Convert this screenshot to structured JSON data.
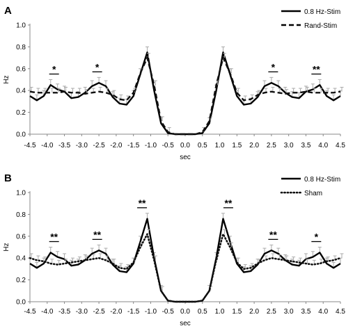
{
  "chart_data": [
    {
      "type": "line",
      "panel_label": "A",
      "xlabel": "sec",
      "ylabel": "Hz",
      "xlim": [
        -4.5,
        4.5
      ],
      "ylim": [
        0,
        1.0
      ],
      "x_ticks": [
        "-4.5",
        "-4.0",
        "-3.5",
        "-3.0",
        "-2.5",
        "-2.0",
        "-1.5",
        "-1.0",
        "-0.5",
        "0.0",
        "0.5",
        "1.0",
        "1.5",
        "2.0",
        "2.5",
        "3.0",
        "3.5",
        "4.0",
        "4.5"
      ],
      "y_ticks": [
        "0.0",
        "0.2",
        "0.4",
        "0.6",
        "0.8",
        "1.0"
      ],
      "x": [
        -4.5,
        -4.3,
        -4.1,
        -3.9,
        -3.7,
        -3.5,
        -3.3,
        -3.1,
        -2.9,
        -2.7,
        -2.5,
        -2.3,
        -2.1,
        -1.9,
        -1.7,
        -1.5,
        -1.3,
        -1.1,
        -0.9,
        -0.7,
        -0.5,
        -0.3,
        -0.1,
        0.1,
        0.3,
        0.5,
        0.7,
        0.9,
        1.1,
        1.3,
        1.5,
        1.7,
        1.9,
        2.1,
        2.3,
        2.5,
        2.7,
        2.9,
        3.1,
        3.3,
        3.5,
        3.7,
        3.9,
        4.1,
        4.3,
        4.5
      ],
      "series": [
        {
          "name": "0.8 Hz-Stim",
          "style": "solid",
          "values": [
            0.35,
            0.31,
            0.35,
            0.45,
            0.41,
            0.39,
            0.33,
            0.34,
            0.38,
            0.44,
            0.47,
            0.44,
            0.34,
            0.28,
            0.27,
            0.35,
            0.55,
            0.75,
            0.4,
            0.1,
            0.01,
            0.0,
            0.0,
            0.0,
            0.0,
            0.01,
            0.1,
            0.4,
            0.75,
            0.55,
            0.35,
            0.27,
            0.28,
            0.34,
            0.44,
            0.47,
            0.44,
            0.38,
            0.34,
            0.33,
            0.39,
            0.41,
            0.45,
            0.35,
            0.31,
            0.35
          ],
          "error": 0.05
        },
        {
          "name": "Rand-Stim",
          "style": "dashed",
          "values": [
            0.39,
            0.38,
            0.38,
            0.38,
            0.38,
            0.39,
            0.38,
            0.38,
            0.37,
            0.38,
            0.39,
            0.38,
            0.36,
            0.32,
            0.31,
            0.38,
            0.56,
            0.7,
            0.45,
            0.12,
            0.02,
            0.0,
            0.0,
            0.0,
            0.0,
            0.02,
            0.12,
            0.45,
            0.7,
            0.56,
            0.38,
            0.31,
            0.32,
            0.36,
            0.38,
            0.39,
            0.38,
            0.37,
            0.38,
            0.38,
            0.39,
            0.38,
            0.38,
            0.38,
            0.38,
            0.39
          ],
          "error": 0.04
        }
      ],
      "significance": [
        {
          "x": -3.8,
          "label": "*"
        },
        {
          "x": -2.55,
          "label": "*"
        },
        {
          "x": 2.55,
          "label": "*"
        },
        {
          "x": 3.8,
          "label": "**"
        }
      ],
      "legend_position": "top-right"
    },
    {
      "type": "line",
      "panel_label": "B",
      "xlabel": "sec",
      "ylabel": "Hz",
      "xlim": [
        -4.5,
        4.5
      ],
      "ylim": [
        0,
        1.0
      ],
      "x_ticks": [
        "-4.5",
        "-4.0",
        "-3.5",
        "-3.0",
        "-2.5",
        "-2.0",
        "-1.5",
        "-1.0",
        "-0.5",
        "0.0",
        "0.5",
        "1.0",
        "1.5",
        "2.0",
        "2.5",
        "3.0",
        "3.5",
        "4.0",
        "4.5"
      ],
      "y_ticks": [
        "0.0",
        "0.2",
        "0.4",
        "0.6",
        "0.8",
        "1.0"
      ],
      "x": [
        -4.5,
        -4.3,
        -4.1,
        -3.9,
        -3.7,
        -3.5,
        -3.3,
        -3.1,
        -2.9,
        -2.7,
        -2.5,
        -2.3,
        -2.1,
        -1.9,
        -1.7,
        -1.5,
        -1.3,
        -1.1,
        -0.9,
        -0.7,
        -0.5,
        -0.3,
        -0.1,
        0.1,
        0.3,
        0.5,
        0.7,
        0.9,
        1.1,
        1.3,
        1.5,
        1.7,
        1.9,
        2.1,
        2.3,
        2.5,
        2.7,
        2.9,
        3.1,
        3.3,
        3.5,
        3.7,
        3.9,
        4.1,
        4.3,
        4.5
      ],
      "series": [
        {
          "name": "0.8 Hz-Stim",
          "style": "solid",
          "values": [
            0.35,
            0.31,
            0.35,
            0.45,
            0.41,
            0.39,
            0.33,
            0.34,
            0.38,
            0.44,
            0.47,
            0.44,
            0.34,
            0.28,
            0.27,
            0.35,
            0.55,
            0.76,
            0.4,
            0.1,
            0.01,
            0.0,
            0.0,
            0.0,
            0.0,
            0.01,
            0.1,
            0.4,
            0.76,
            0.55,
            0.35,
            0.27,
            0.28,
            0.34,
            0.44,
            0.47,
            0.44,
            0.38,
            0.34,
            0.33,
            0.39,
            0.41,
            0.45,
            0.35,
            0.31,
            0.35
          ],
          "error": 0.05
        },
        {
          "name": "Sham",
          "style": "dotted",
          "values": [
            0.4,
            0.38,
            0.37,
            0.35,
            0.34,
            0.35,
            0.36,
            0.37,
            0.38,
            0.39,
            0.4,
            0.38,
            0.35,
            0.31,
            0.3,
            0.36,
            0.5,
            0.62,
            0.38,
            0.1,
            0.01,
            0.0,
            0.0,
            0.0,
            0.0,
            0.01,
            0.1,
            0.38,
            0.62,
            0.5,
            0.36,
            0.3,
            0.31,
            0.35,
            0.38,
            0.4,
            0.39,
            0.38,
            0.37,
            0.36,
            0.35,
            0.34,
            0.35,
            0.37,
            0.38,
            0.4
          ],
          "error": 0.04
        }
      ],
      "significance": [
        {
          "x": -3.8,
          "label": "**"
        },
        {
          "x": -2.55,
          "label": "**"
        },
        {
          "x": -1.25,
          "label": "**"
        },
        {
          "x": 1.25,
          "label": "**"
        },
        {
          "x": 2.55,
          "label": "**"
        },
        {
          "x": 3.8,
          "label": "*"
        }
      ],
      "legend_position": "top-right"
    }
  ]
}
